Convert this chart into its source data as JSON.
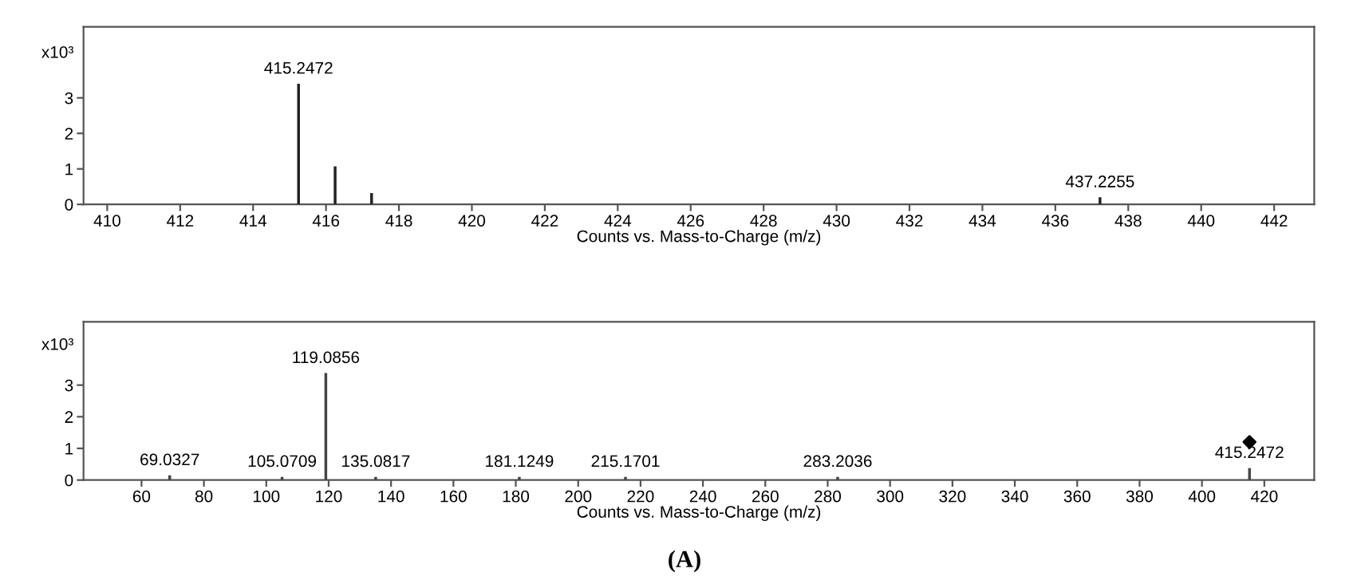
{
  "chart_data": [
    {
      "type": "bar",
      "xlabel": "Counts vs. Mass-to-Charge (m/z)",
      "ylabel": "x10³",
      "x": [
        415.2472,
        416.25,
        417.25,
        437.2255
      ],
      "values": [
        3.4,
        1.07,
        0.32,
        0.2
      ],
      "color": "#222222",
      "xlim": [
        409.35,
        443.1
      ],
      "ylim": [
        0,
        5
      ],
      "xticks": [
        410,
        412,
        414,
        416,
        418,
        420,
        422,
        424,
        426,
        428,
        430,
        432,
        434,
        436,
        438,
        440,
        442
      ],
      "yticks": [
        0,
        1,
        2,
        3
      ],
      "grid": false,
      "legend": false,
      "annotations": [
        {
          "text": "415.2472",
          "x": 415.2472,
          "y": 3.4
        },
        {
          "text": "437.2255",
          "x": 437.2255,
          "y": 0.2
        }
      ]
    },
    {
      "type": "bar",
      "xlabel": "Counts vs. Mass-to-Charge (m/z)",
      "ylabel": "x10³",
      "series": [
        {
          "type": "bar",
          "color": "#444444",
          "x": [
            69.0327,
            105.0709,
            119.0856,
            135.0817,
            181.1249,
            215.1701,
            283.2036,
            415.2472
          ],
          "values": [
            0.15,
            0.1,
            3.38,
            0.1,
            0.1,
            0.1,
            0.1,
            0.38
          ]
        },
        {
          "type": "scatter",
          "color": "#000000",
          "marker": "diamond",
          "x": [
            415.2472
          ],
          "values": [
            1.2
          ]
        }
      ],
      "xlim": [
        41.4,
        436
      ],
      "ylim": [
        0,
        5
      ],
      "xticks": [
        60,
        80,
        100,
        120,
        140,
        160,
        180,
        200,
        220,
        240,
        260,
        280,
        300,
        320,
        340,
        360,
        380,
        400,
        420
      ],
      "yticks": [
        0,
        1,
        2,
        3
      ],
      "grid": false,
      "legend": false,
      "annotations": [
        {
          "text": "69.0327",
          "x": 69.0327,
          "y": 0.15
        },
        {
          "text": "105.0709",
          "x": 105.0709,
          "y": 0.1
        },
        {
          "text": "119.0856",
          "x": 119.0856,
          "y": 3.38
        },
        {
          "text": "135.0817",
          "x": 135.0817,
          "y": 0.1
        },
        {
          "text": "181.1249",
          "x": 181.1249,
          "y": 0.1
        },
        {
          "text": "215.1701",
          "x": 215.1701,
          "y": 0.1
        },
        {
          "text": "283.2036",
          "x": 283.2036,
          "y": 0.1
        },
        {
          "text": "415.2472",
          "x": 415.2472,
          "y": 0.38
        },
        "(A)"
      ]
    }
  ]
}
